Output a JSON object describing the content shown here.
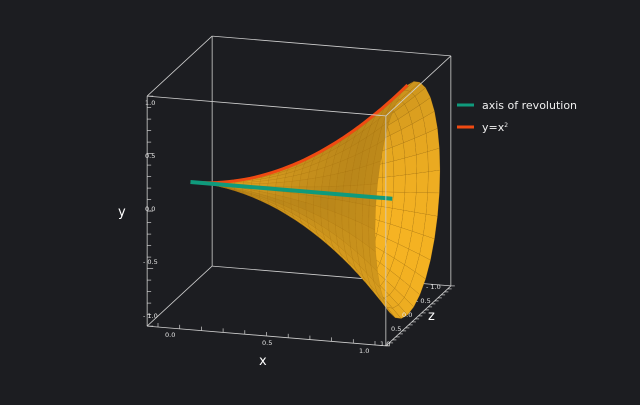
{
  "chart_data": {
    "type": "surface-of-revolution",
    "function": "y=x^2",
    "axis_of_revolution": "x",
    "x": {
      "label": "x",
      "range": [
        0,
        1
      ],
      "ticks": [
        "0.0",
        "0.5",
        "1.0"
      ]
    },
    "y": {
      "label": "y",
      "range": [
        -1,
        1
      ],
      "ticks": [
        "1.0",
        "0.5",
        "0.0",
        "- 0.5",
        "- 1.0"
      ]
    },
    "z": {
      "label": "z",
      "range": [
        -1,
        1
      ],
      "ticks": [
        "- 1.0",
        "- 0.5",
        "0.0",
        "0.5",
        "1.0"
      ]
    },
    "legend": {
      "placement": "top-right",
      "items": [
        {
          "label": "axis of revolution",
          "color": "#0f9a7c"
        },
        {
          "label": "y=x",
          "superscript": "2",
          "color": "#f04a12"
        }
      ]
    },
    "surface_color": "#f6b51e",
    "background": "#1c1d21"
  }
}
